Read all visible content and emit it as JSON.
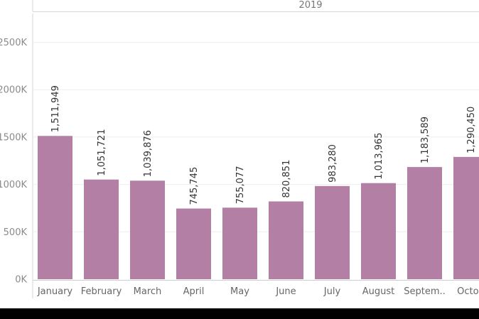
{
  "chart_data": {
    "type": "bar",
    "column_header": "2019",
    "categories": [
      "January",
      "February",
      "March",
      "April",
      "May",
      "June",
      "July",
      "August",
      "Septem..",
      "Octob"
    ],
    "values": [
      1511949,
      1051721,
      1039876,
      745745,
      755077,
      820851,
      983280,
      1013965,
      1183589,
      1290450
    ],
    "data_labels": [
      "1,511,949",
      "1,051,721",
      "1,039,876",
      "745,745",
      "755,077",
      "820,851",
      "983,280",
      "1,013,965",
      "1,183,589",
      "1,290,450"
    ],
    "y_ticks": [
      0,
      500000,
      1000000,
      1500000,
      2000000,
      2500000
    ],
    "y_tick_labels": [
      "0K",
      "500K",
      "1000K",
      "1500K",
      "2000K",
      "2500K"
    ],
    "ylim": [
      0,
      2500000
    ],
    "grid": true,
    "bar_color": "#b47fa5"
  }
}
